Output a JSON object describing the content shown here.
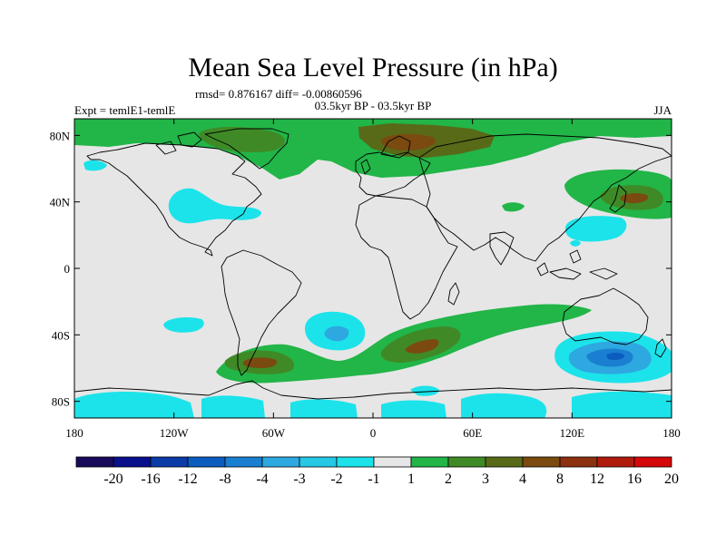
{
  "chart_data": {
    "type": "heatmap",
    "title": "Mean Sea Level Pressure (in hPa)",
    "stats": "rmsd= 0.876167 diff= -0.00860596",
    "subtitle": "03.5kyr BP - 03.5kyr BP",
    "left_label": "Expt = temlE1-temlE",
    "right_label": "JJA",
    "xlim": [
      -180,
      180
    ],
    "ylim": [
      -90,
      90
    ],
    "x_ticks": [
      {
        "value": -180,
        "label": "180"
      },
      {
        "value": -120,
        "label": "120W"
      },
      {
        "value": -60,
        "label": "60W"
      },
      {
        "value": 0,
        "label": "0"
      },
      {
        "value": 60,
        "label": "60E"
      },
      {
        "value": 120,
        "label": "120E"
      },
      {
        "value": 180,
        "label": "180"
      }
    ],
    "y_ticks": [
      {
        "value": 80,
        "label": "80N"
      },
      {
        "value": 40,
        "label": "40N"
      },
      {
        "value": 0,
        "label": "0"
      },
      {
        "value": -40,
        "label": "40S"
      },
      {
        "value": -80,
        "label": "80S"
      }
    ],
    "levels": [
      -20,
      -16,
      -12,
      -8,
      -4,
      -3,
      -2,
      -1,
      1,
      2,
      3,
      4,
      8,
      12,
      16,
      20
    ],
    "level_labels": [
      "-20",
      "-16",
      "-12",
      "-8",
      "-4",
      "-3",
      "-2",
      "-1",
      "1",
      "2",
      "3",
      "4",
      "8",
      "12",
      "16",
      "20"
    ],
    "colors": [
      "#1a0a5a",
      "#0a0f8c",
      "#0b3ba6",
      "#0a5cbf",
      "#1a7fd0",
      "#2ea8e0",
      "#27c7e6",
      "#1ce3ea",
      "#e6e6e6",
      "#22b548",
      "#3f8a26",
      "#586a18",
      "#7a4a10",
      "#8c3010",
      "#b01c0c",
      "#d40808"
    ],
    "background_level": "#e6e6e6"
  }
}
